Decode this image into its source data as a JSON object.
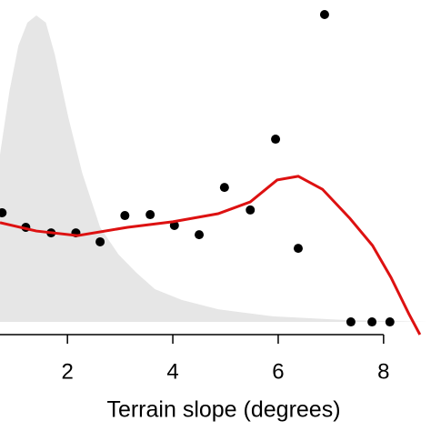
{
  "chart_data": {
    "type": "scatter",
    "x_label": "Terrain slope (degrees)",
    "xlim": [
      0.72,
      8.9
    ],
    "xticks": [
      2,
      4,
      6,
      8
    ],
    "ylim": [
      -0.41,
      10.41
    ],
    "density": {
      "color": "#e6e6e6",
      "x": [
        0.72,
        0.9,
        1.07,
        1.24,
        1.41,
        1.59,
        1.76,
        2.02,
        2.28,
        2.62,
        2.97,
        3.31,
        3.66,
        4.17,
        4.86,
        5.9,
        7.28,
        8.83
      ],
      "values": [
        5.41,
        7.47,
        8.94,
        9.68,
        9.91,
        9.68,
        8.65,
        6.59,
        4.82,
        3.06,
        2.18,
        1.59,
        1.06,
        0.71,
        0.41,
        0.18,
        0.06,
        0
      ]
    },
    "curve": {
      "color": "#dd1111",
      "x": [
        0.72,
        1.41,
        2.19,
        3.14,
        4.0,
        4.86,
        5.47,
        5.98,
        6.38,
        6.84,
        7.36,
        7.79,
        8.14,
        8.48,
        8.69
      ],
      "values": [
        3.21,
        2.94,
        2.79,
        3.06,
        3.24,
        3.5,
        3.88,
        4.59,
        4.71,
        4.29,
        3.35,
        2.47,
        1.44,
        0.26,
        -0.41
      ]
    },
    "points": {
      "color": "#000000",
      "x": [
        0.76,
        1.21,
        1.69,
        2.16,
        2.62,
        3.09,
        3.57,
        4.03,
        4.5,
        4.98,
        5.47,
        5.95,
        6.38,
        6.88,
        7.38,
        7.78,
        8.12
      ],
      "values": [
        3.53,
        3.06,
        2.88,
        2.88,
        2.59,
        3.44,
        3.47,
        3.12,
        2.82,
        4.35,
        3.62,
        5.91,
        2.38,
        9.94,
        0,
        0,
        0
      ]
    }
  }
}
